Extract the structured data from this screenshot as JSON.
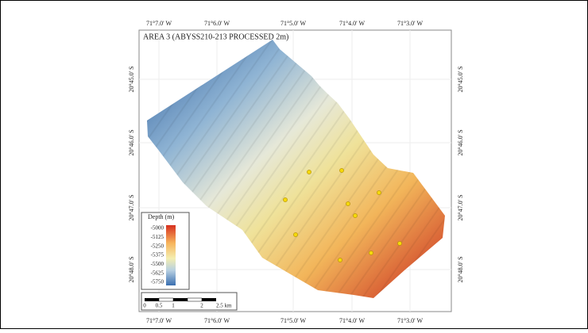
{
  "map": {
    "title": "AREA 3 (ABYSS210-213 PROCESSED 2m)",
    "longitude_labels": [
      "71°7.0' W",
      "71°6.0' W",
      "71°5.0' W",
      "71°4.0' W",
      "71°3.0' W"
    ],
    "latitude_labels": [
      "20°45.0' S",
      "20°46.0' S",
      "20°47.0' S",
      "20°48.0' S"
    ],
    "legend": {
      "title": "Depth (m)",
      "ticks": [
        -5000,
        -5125,
        -5250,
        -5375,
        -5500,
        -5625,
        -5750
      ]
    },
    "scale_bar": {
      "labels": [
        "0",
        "0.5",
        "1",
        "2",
        "2.5 km"
      ]
    }
  }
}
